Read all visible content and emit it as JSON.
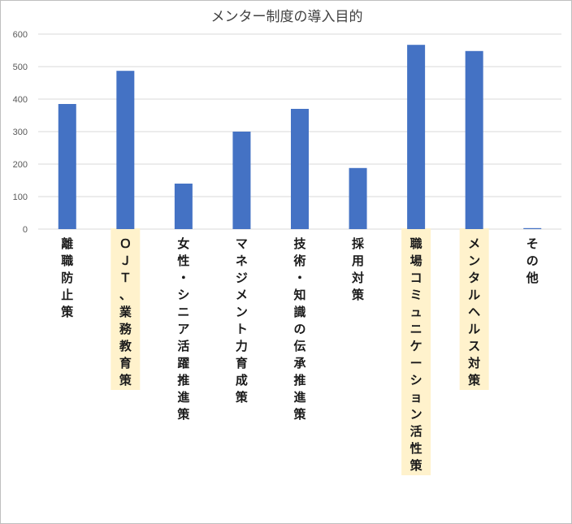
{
  "chart_data": {
    "type": "bar",
    "title": "メンター制度の導入目的",
    "xlabel": "",
    "ylabel": "",
    "ylim": [
      0,
      600
    ],
    "yticks": [
      0,
      100,
      200,
      300,
      400,
      500,
      600
    ],
    "grid": true,
    "legend": "none",
    "categories": [
      "離職防止策",
      "ＯＪＴ、業務教育策",
      "女性・シニア活躍推進策",
      "マネジメント力育成策",
      "技術・知識の伝承推進策",
      "採用対策",
      "職場コミュニケーション活性策",
      "メンタルヘルス対策",
      "その他"
    ],
    "values": [
      385,
      487,
      140,
      300,
      370,
      188,
      567,
      548,
      3
    ],
    "highlighted_categories": [
      "ＯＪＴ、業務教育策",
      "職場コミュニケーション活性策",
      "メンタルヘルス対策"
    ],
    "colors": {
      "bar": "#4472c4",
      "gridline": "#d9d9d9",
      "highlight": "#fff2cc"
    }
  }
}
